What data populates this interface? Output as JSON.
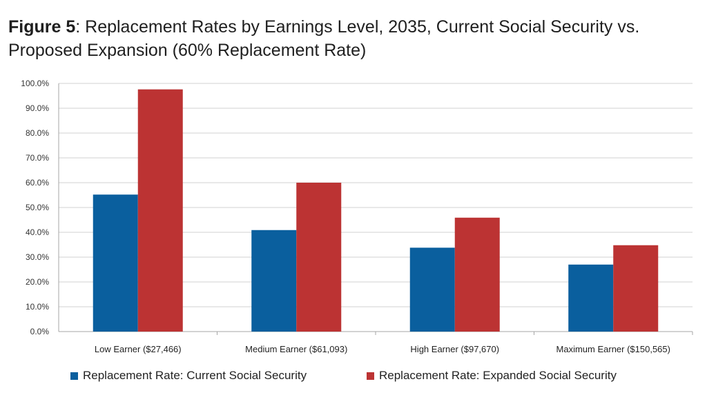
{
  "title": {
    "prefix": "Figure 5",
    "text": ": Replacement Rates by Earnings Level, 2035, Current Social Security vs. Proposed Expansion (60% Replacement Rate)"
  },
  "colors": {
    "current": "#0a5f9e",
    "expanded": "#bc3333",
    "grid": "#d0d0d0",
    "axis": "#a6a6a6"
  },
  "chart_data": {
    "type": "bar",
    "categories": [
      "Low Earner ($27,466)",
      "Medium Earner ($61,093)",
      "High Earner ($97,670)",
      "Maximum Earner ($150,565)"
    ],
    "series": [
      {
        "name": "Replacement Rate: Current Social Security",
        "values": [
          55.2,
          40.9,
          33.8,
          27.0
        ]
      },
      {
        "name": "Replacement Rate: Expanded Social Security",
        "values": [
          97.6,
          60.0,
          45.9,
          34.8
        ]
      }
    ],
    "ylim": [
      0,
      100
    ],
    "yticks": [
      "0.0%",
      "10.0%",
      "20.0%",
      "30.0%",
      "40.0%",
      "50.0%",
      "60.0%",
      "70.0%",
      "80.0%",
      "90.0%",
      "100.0%"
    ],
    "ytick_values": [
      0,
      10,
      20,
      30,
      40,
      50,
      60,
      70,
      80,
      90,
      100
    ],
    "grid": true,
    "legend_position": "bottom"
  }
}
